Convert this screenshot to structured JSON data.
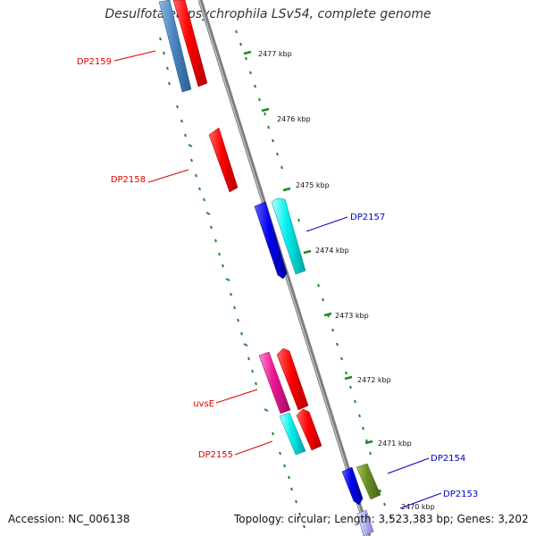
{
  "title": "Desulfotalea psychrophila LSv54, complete genome",
  "accession": "Accession: NC_006138",
  "summary": "Topology: circular; Length: 3,523,383 bp; Genes: 3,202",
  "kbp_labels": [
    "2477 kbp",
    "2476 kbp",
    "2475 kbp",
    "2474 kbp",
    "2473 kbp",
    "2472 kbp",
    "2471 kbp",
    "2470 kbp"
  ],
  "gene_labels": [
    "DP2159",
    "DP2158",
    "DP2157",
    "uvsE",
    "DP2155",
    "DP2154",
    "DP2153"
  ],
  "colors": {
    "backbone": "#8a8a8a",
    "tick": "#1f8a1f",
    "label_red": "#dd0000",
    "label_blue": "#0000cc"
  }
}
